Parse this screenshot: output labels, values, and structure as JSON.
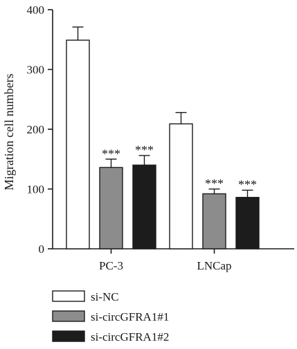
{
  "chart_data": {
    "type": "bar",
    "title": "",
    "xlabel": "",
    "ylabel": "Migration cell numbers",
    "ylim": [
      0,
      400
    ],
    "yticks": [
      0,
      100,
      200,
      300,
      400
    ],
    "grid": false,
    "legend_position": "bottom-left",
    "categories": [
      "PC-3",
      "LNCap"
    ],
    "series": [
      {
        "name": "si-NC",
        "color": "#ffffff",
        "values": [
          349,
          209
        ],
        "errors": [
          22,
          19
        ],
        "annotations": [
          "",
          ""
        ]
      },
      {
        "name": "si-circGFRA1#1",
        "color": "#8c8c8c",
        "values": [
          136,
          92
        ],
        "errors": [
          14,
          8
        ],
        "annotations": [
          "***",
          "***"
        ]
      },
      {
        "name": "si-circGFRA1#2",
        "color": "#1c1c1c",
        "values": [
          140,
          86
        ],
        "errors": [
          16,
          12
        ],
        "annotations": [
          "***",
          "***"
        ]
      }
    ]
  }
}
